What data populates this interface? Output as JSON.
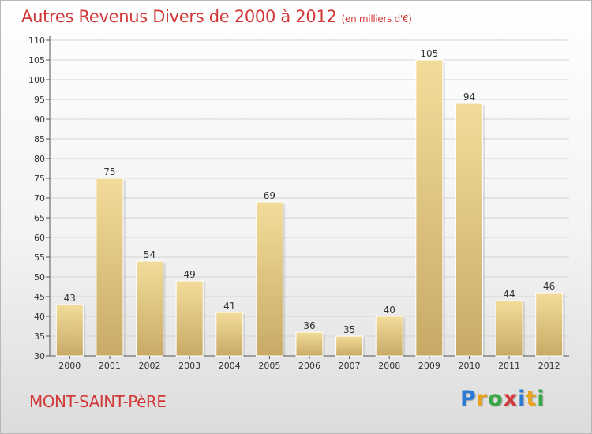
{
  "header": {
    "title": "Autres Revenus Divers de 2000 à 2012",
    "subtitle": "(en milliers d'€)"
  },
  "footer": {
    "town": "MONT-SAINT-PèRE",
    "logo_letters": [
      "P",
      "r",
      "o",
      "x",
      "i",
      "t",
      "i"
    ],
    "logo_colors": [
      "#2a7ad6",
      "#e8a21c",
      "#3aa845",
      "#d23a3a",
      "#2a7ad6",
      "#e8a21c",
      "#3aa845"
    ]
  },
  "colors": {
    "title": "#d23a3a",
    "bar_light": "#f3dc9a",
    "bar_dark": "#c8aa66"
  },
  "chart_data": {
    "type": "bar",
    "categories": [
      "2000",
      "2001",
      "2002",
      "2003",
      "2004",
      "2005",
      "2006",
      "2007",
      "2008",
      "2009",
      "2010",
      "2011",
      "2012"
    ],
    "values": [
      43,
      75,
      54,
      49,
      41,
      69,
      36,
      35,
      40,
      105,
      94,
      44,
      46
    ],
    "ylim": [
      30,
      110
    ],
    "yticks": [
      30,
      35,
      40,
      45,
      50,
      55,
      60,
      65,
      70,
      75,
      80,
      85,
      90,
      95,
      100,
      105,
      110
    ],
    "grid": true,
    "data_labels": true
  }
}
